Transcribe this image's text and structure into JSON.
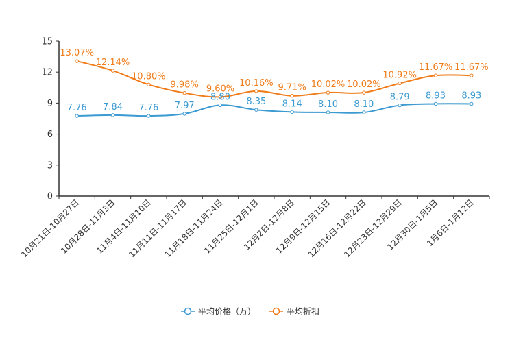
{
  "chart_data": {
    "type": "line",
    "title": "",
    "xlabel": "",
    "ylabel": "",
    "ylim": [
      0,
      15
    ],
    "yticks": [
      0,
      3,
      6,
      9,
      12,
      15
    ],
    "grid": false,
    "legend_position": "bottom-center",
    "categories": [
      "10月21日-10月27日",
      "10月28日-11月3日",
      "11月4日-11月10日",
      "11月11日-11月17日",
      "11月18日-11月24日",
      "11月25日-12月1日",
      "12月2日-12月8日",
      "12月9日-12月15日",
      "12月16日-12月22日",
      "12月23日-12月29日",
      "12月30日-1月5日",
      "1月6日-1月12日"
    ],
    "series": [
      {
        "name": "平均价格（万）",
        "color": "#3b9ad1",
        "values": [
          7.76,
          7.84,
          7.76,
          7.97,
          8.8,
          8.35,
          8.14,
          8.1,
          8.1,
          8.79,
          8.93,
          8.93
        ],
        "labels": [
          "7.76",
          "7.84",
          "7.76",
          "7.97",
          "8.80",
          "8.35",
          "8.14",
          "8.10",
          "8.10",
          "8.79",
          "8.93",
          "8.93"
        ]
      },
      {
        "name": "平均折扣",
        "color": "#f07c1a",
        "values": [
          13.07,
          12.14,
          10.8,
          9.98,
          9.6,
          10.16,
          9.71,
          10.02,
          10.02,
          10.92,
          11.67,
          11.67
        ],
        "labels": [
          "13.07%",
          "12.14%",
          "10.80%",
          "9.98%",
          "9.60%",
          "10.16%",
          "9.71%",
          "10.02%",
          "10.02%",
          "10.92%",
          "11.67%",
          "11.67%"
        ]
      }
    ]
  }
}
